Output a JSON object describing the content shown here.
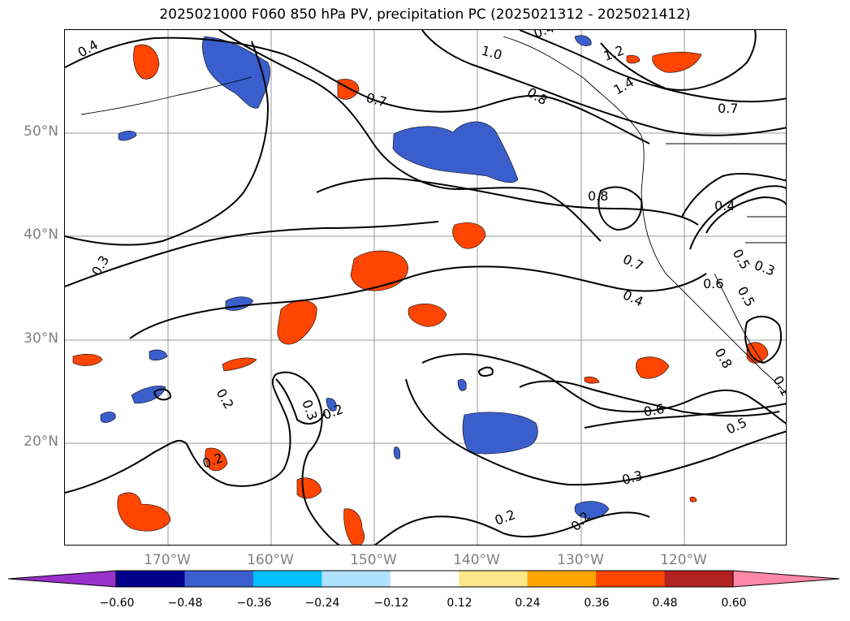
{
  "title": "2025021000 F060 850 hPa PV, precipitation PC (2025021312 - 2025021412)",
  "latitude_labels": [
    "50°N",
    "40°N",
    "30°N",
    "20°N"
  ],
  "longitude_labels": [
    "170°W",
    "160°W",
    "150°W",
    "140°W",
    "130°W",
    "120°W"
  ],
  "colorbar": {
    "tick_labels": [
      "−0.60",
      "−0.48",
      "−0.36",
      "−0.24",
      "−0.12",
      "0.12",
      "0.24",
      "0.36",
      "0.48",
      "0.60"
    ],
    "colors": [
      "#9932CC",
      "#00008B",
      "#3A5FCD",
      "#00BFFF",
      "#B0E2FF",
      "#FFFFFF",
      "#FFE78A",
      "#FFA500",
      "#FF4500",
      "#B22222",
      "#FF88AA"
    ]
  },
  "contour_labels": [
    "0.4",
    "1.0",
    "0.4",
    "1.2",
    "1.4",
    "0.8",
    "0.7",
    "0.7",
    "0.8",
    "0.4",
    "0.3",
    "0.7",
    "0.6",
    "0.5",
    "0.3",
    "0.4",
    "0.2",
    "0.3",
    "0.2",
    "0.2",
    "0.6",
    "0.5",
    "0.3",
    "0.2",
    "0.2",
    "0.8",
    "0.1",
    "0.5"
  ]
}
